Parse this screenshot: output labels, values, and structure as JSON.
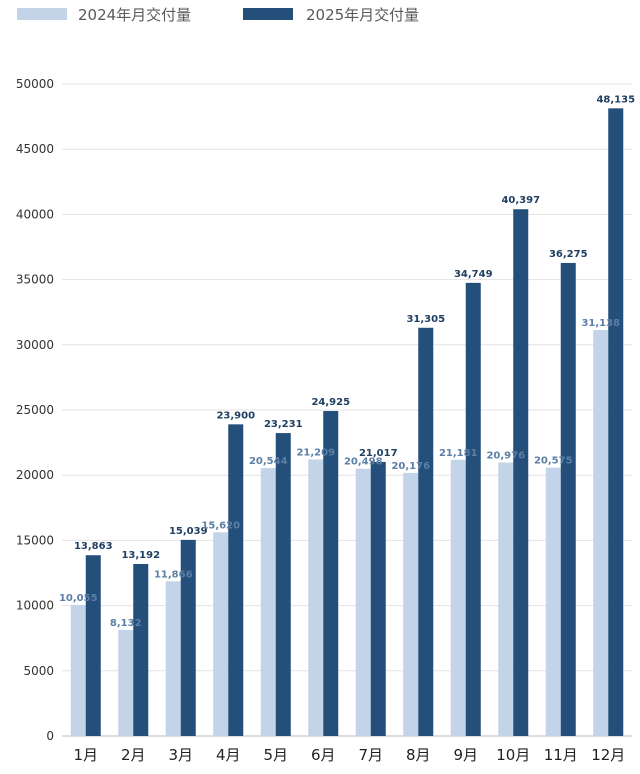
{
  "chart_data": {
    "type": "bar",
    "categories": [
      "1月",
      "2月",
      "3月",
      "4月",
      "5月",
      "6月",
      "7月",
      "8月",
      "9月",
      "10月",
      "11月",
      "12月"
    ],
    "series": [
      {
        "name": "2024年月交付量",
        "color": "#c3d3e8",
        "label_color": "#5b7fa6",
        "values": [
          10055,
          8132,
          11866,
          15620,
          20544,
          21209,
          20498,
          20176,
          21181,
          20976,
          20575,
          31138
        ],
        "value_labels": [
          "10,055",
          "8,132",
          "11,866",
          "15,620",
          "20,544",
          "21,209",
          "20,498",
          "20,176",
          "21,181",
          "20,976",
          "20,575",
          "31,138"
        ]
      },
      {
        "name": "2025年月交付量",
        "color": "#244f7a",
        "label_color": "#1f3f63",
        "values": [
          13863,
          13192,
          15039,
          23900,
          23231,
          24925,
          21017,
          31305,
          34749,
          40397,
          36275,
          48135
        ],
        "value_labels": [
          "13,863",
          "13,192",
          "15,039",
          "23,900",
          "23,231",
          "24,925",
          "21,017",
          "31,305",
          "34,749",
          "40,397",
          "36,275",
          "48,135"
        ]
      }
    ],
    "ylim": [
      0,
      50000
    ],
    "yticks": [
      "0",
      "5000",
      "10000",
      "15000",
      "20000",
      "25000",
      "30000",
      "35000",
      "40000",
      "45000",
      "50000"
    ],
    "ytick_values": [
      0,
      5000,
      10000,
      15000,
      20000,
      25000,
      30000,
      35000,
      40000,
      45000,
      50000
    ],
    "grid": true,
    "legend_position": "top-left"
  }
}
